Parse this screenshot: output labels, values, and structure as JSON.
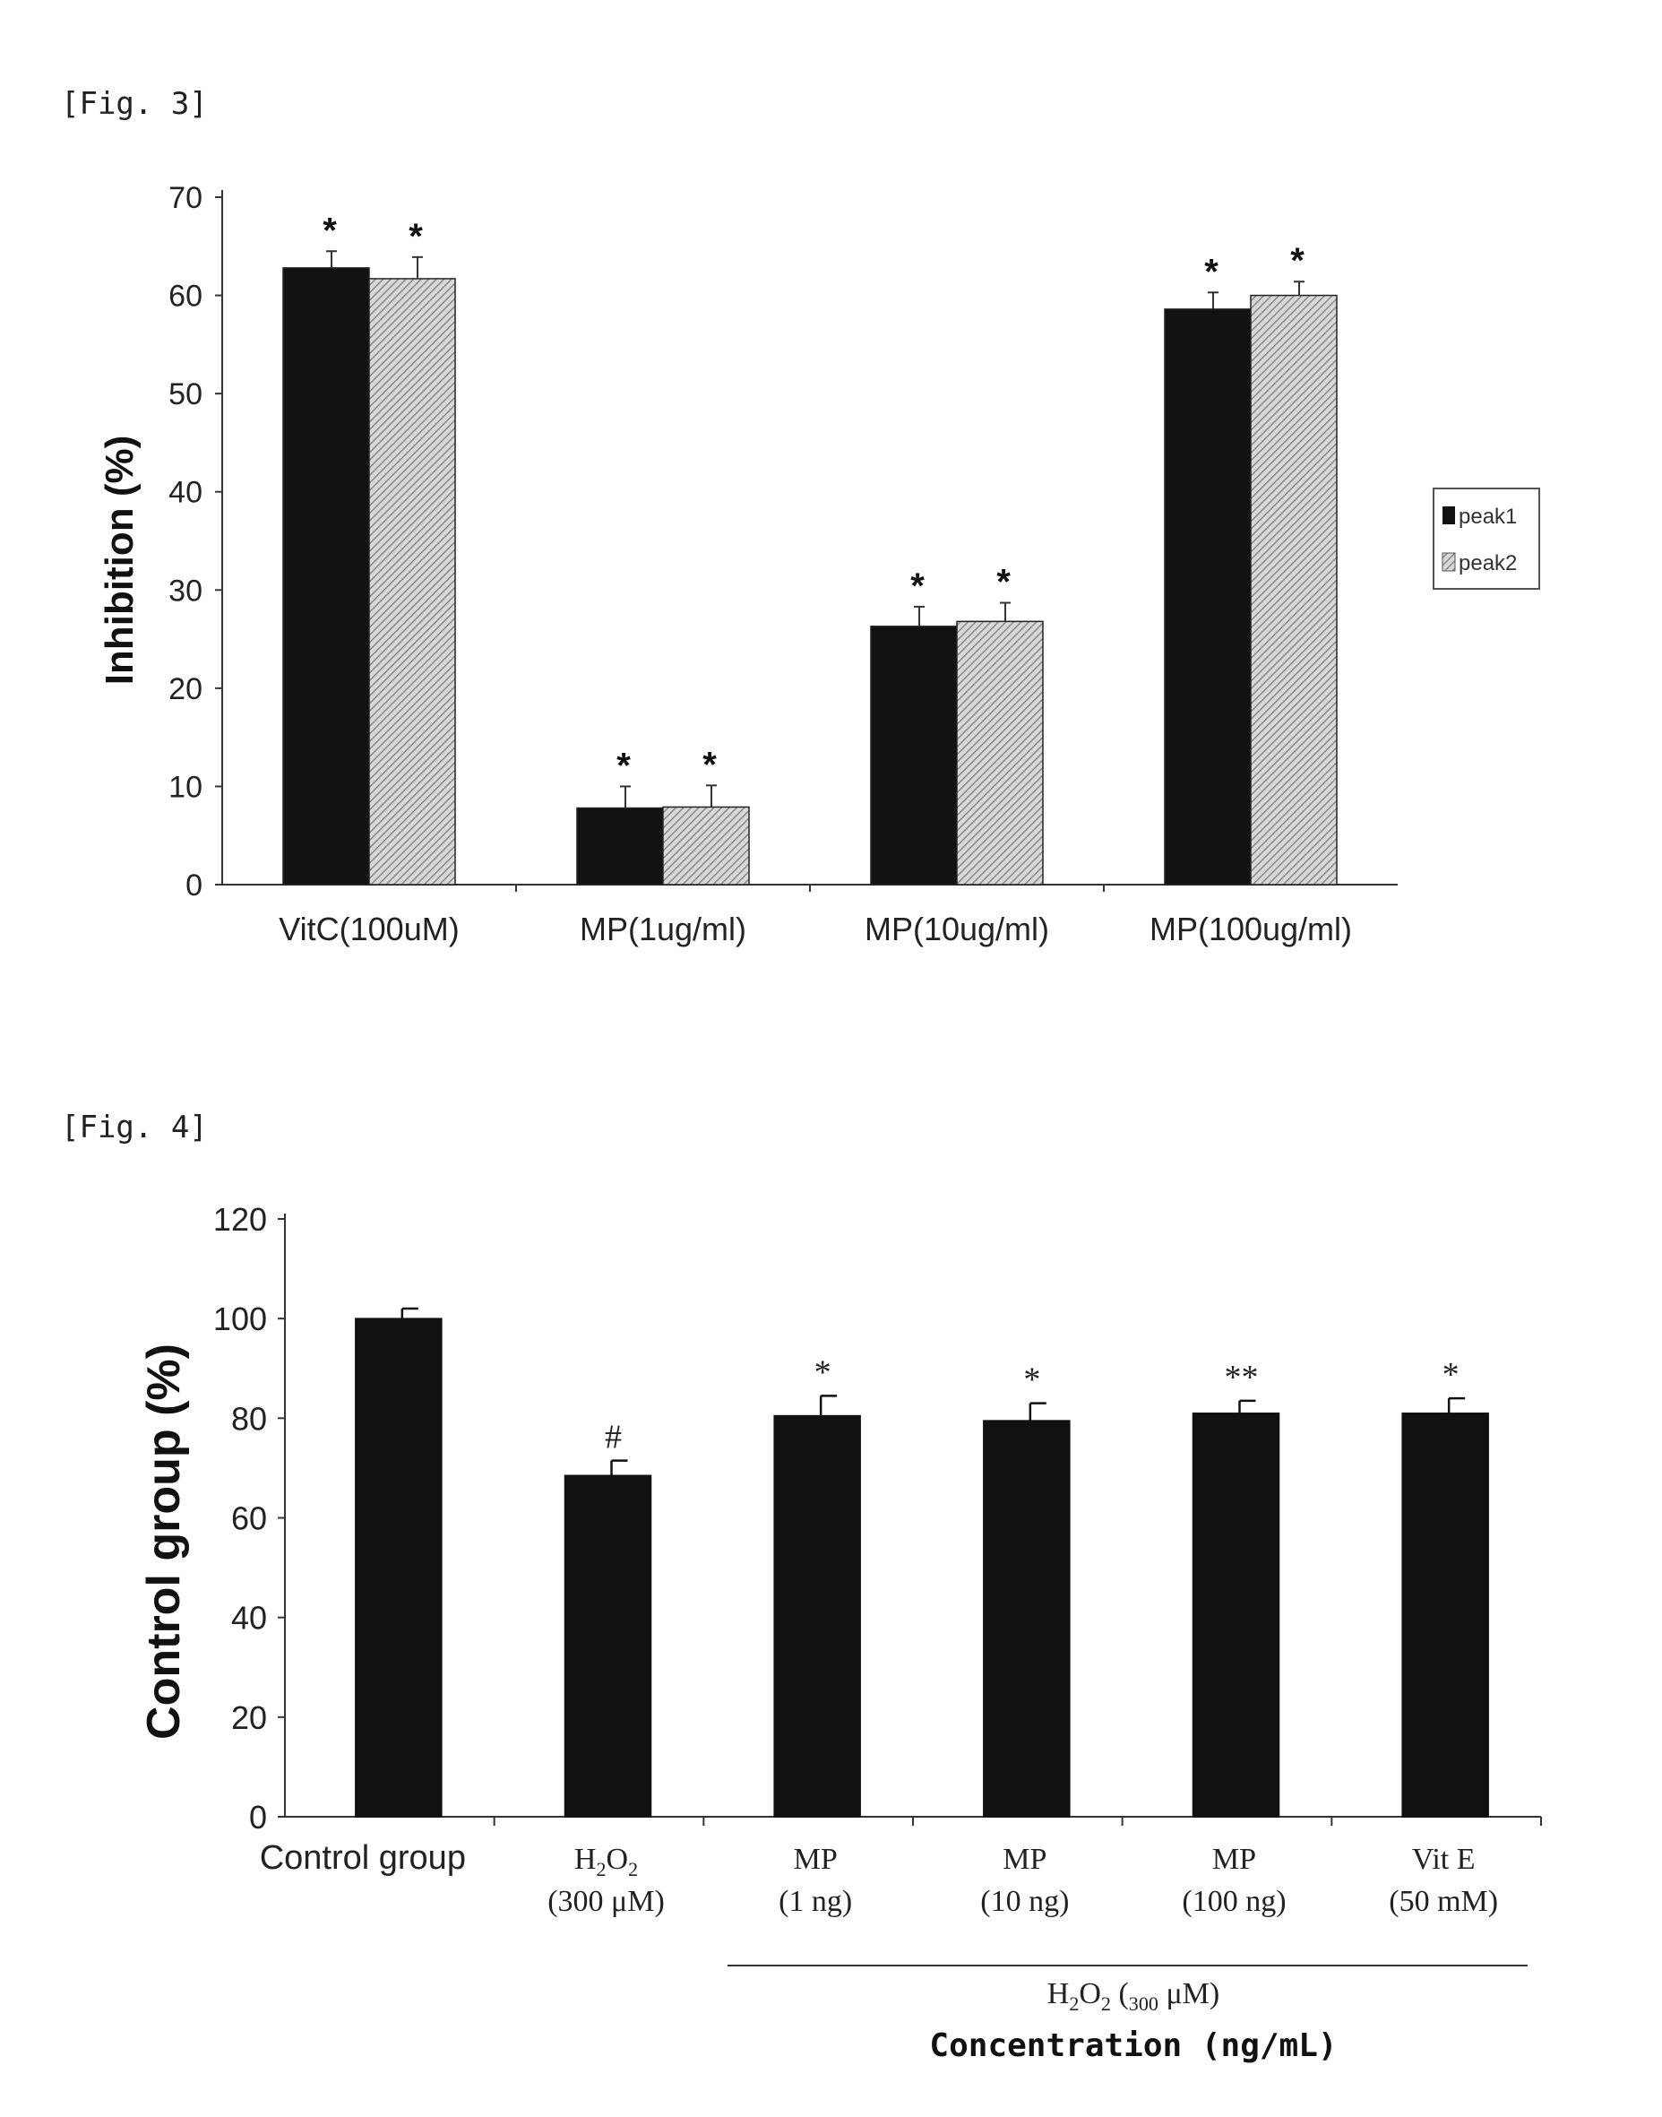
{
  "figures": [
    {
      "label": "[Fig. 3]"
    },
    {
      "label": "[Fig. 4]"
    }
  ],
  "colors": {
    "bar_dark": "#111111",
    "bar_hatch": "#bdbdbd",
    "axis": "#333333"
  },
  "chart_data": [
    {
      "type": "bar",
      "title": "",
      "xlabel": "",
      "ylabel": "Inhibition (%)",
      "ylim": [
        0,
        70
      ],
      "yticks": [
        0,
        10,
        20,
        30,
        40,
        50,
        60,
        70
      ],
      "categories": [
        "VitC(100uM)",
        "MP(1ug/ml)",
        "MP(10ug/ml)",
        "MP(100ug/ml)"
      ],
      "series": [
        {
          "name": "peak1",
          "values": [
            62.8,
            7.8,
            26.3,
            58.6
          ],
          "errors": [
            1.7,
            2.2,
            2.0,
            1.7
          ],
          "annotations": [
            "*",
            "*",
            "*",
            "*"
          ],
          "fill": "#111111"
        },
        {
          "name": "peak2",
          "values": [
            61.7,
            7.9,
            26.8,
            60.0
          ],
          "errors": [
            2.2,
            2.2,
            1.9,
            1.4
          ],
          "annotations": [
            "*",
            "*",
            "*",
            "*"
          ],
          "fill": "hatch"
        }
      ],
      "legend": "right",
      "grid": false
    },
    {
      "type": "bar",
      "title": "",
      "xlabel": "Concentration (ng/mL)",
      "ylabel": "Control group (%)",
      "ylim": [
        0,
        120
      ],
      "yticks": [
        0,
        20,
        40,
        60,
        80,
        100,
        120
      ],
      "categories": [
        {
          "line1": "Control group",
          "line2": ""
        },
        {
          "line1": "H2O2",
          "line2": "(300 μM)"
        },
        {
          "line1": "MP",
          "line2": "(1 ng)"
        },
        {
          "line1": "MP",
          "line2": "(10 ng)"
        },
        {
          "line1": "MP",
          "line2": "(100 ng)"
        },
        {
          "line1": "Vit E",
          "line2": "(50 mM)"
        }
      ],
      "series": [
        {
          "values": [
            100,
            68.5,
            80.5,
            79.5,
            81,
            81
          ],
          "errors": [
            2,
            3,
            4,
            3.5,
            2.5,
            3
          ],
          "annotations": [
            "",
            "#",
            "*",
            "*",
            "**",
            "*"
          ],
          "fill": "#111111"
        }
      ],
      "group_label": "H2O2 (300 μM)",
      "legend": "none",
      "grid": false
    }
  ]
}
